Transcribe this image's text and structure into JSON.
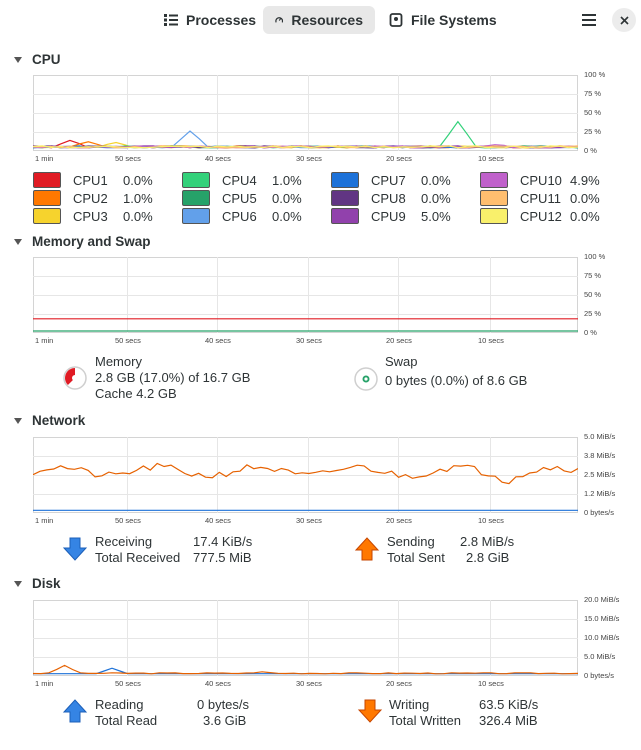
{
  "tabs": [
    {
      "label": "Processes",
      "active": false
    },
    {
      "label": "Resources",
      "active": true
    },
    {
      "label": "File Systems",
      "active": false
    }
  ],
  "time_labels": [
    "1 min",
    "50 secs",
    "40 secs",
    "30 secs",
    "20 secs",
    "10 secs"
  ],
  "cpu": {
    "title": "CPU",
    "y_labels": [
      "100 %",
      "75 %",
      "50 %",
      "25 %",
      "0 %"
    ],
    "cores": [
      {
        "name": "CPU1",
        "value": "0.0%",
        "color": "#e01b24"
      },
      {
        "name": "CPU2",
        "value": "1.0%",
        "color": "#ff7800"
      },
      {
        "name": "CPU3",
        "value": "0.0%",
        "color": "#f6d32d"
      },
      {
        "name": "CPU4",
        "value": "1.0%",
        "color": "#33d17a"
      },
      {
        "name": "CPU5",
        "value": "0.0%",
        "color": "#26a269"
      },
      {
        "name": "CPU6",
        "value": "0.0%",
        "color": "#62a0ea"
      },
      {
        "name": "CPU7",
        "value": "0.0%",
        "color": "#1c71d8"
      },
      {
        "name": "CPU8",
        "value": "0.0%",
        "color": "#613583"
      },
      {
        "name": "CPU9",
        "value": "5.0%",
        "color": "#9141ac"
      },
      {
        "name": "CPU10",
        "value": "4.9%",
        "color": "#c061cb"
      },
      {
        "name": "CPU11",
        "value": "0.0%",
        "color": "#ffbe6f"
      },
      {
        "name": "CPU12",
        "value": "0.0%",
        "color": "#f9f06b"
      }
    ]
  },
  "memory": {
    "title": "Memory and Swap",
    "y_labels": [
      "100 %",
      "75 %",
      "50 %",
      "25 %",
      "0 %"
    ],
    "memory_label": "Memory",
    "memory_value": "2.8 GB (17.0%) of 16.7 GB",
    "cache_value": "Cache 4.2 GB",
    "swap_label": "Swap",
    "swap_value": "0 bytes (0.0%) of 8.6 GB",
    "memory_percent": 17.0,
    "swap_percent": 0.0,
    "memory_color": "#e01b24",
    "swap_color": "#26a269"
  },
  "network": {
    "title": "Network",
    "y_labels": [
      "5.0 MiB/s",
      "3.8 MiB/s",
      "2.5 MiB/s",
      "1.2 MiB/s",
      "0 bytes/s"
    ],
    "receiving_label": "Receiving",
    "receiving_value": "17.4 KiB/s",
    "total_received_label": "Total Received",
    "total_received_value": "777.5 MiB",
    "sending_label": "Sending",
    "sending_value": "2.8 MiB/s",
    "total_sent_label": "Total Sent",
    "total_sent_value": "2.8 GiB",
    "receive_color": "#1c71d8",
    "send_color": "#e66100"
  },
  "disk": {
    "title": "Disk",
    "y_labels": [
      "20.0 MiB/s",
      "15.0 MiB/s",
      "10.0 MiB/s",
      "5.0 MiB/s",
      "0 bytes/s"
    ],
    "reading_label": "Reading",
    "reading_value": "0 bytes/s",
    "total_read_label": "Total Read",
    "total_read_value": "3.6 GiB",
    "writing_label": "Writing",
    "writing_value": "63.5 KiB/s",
    "total_written_label": "Total Written",
    "total_written_value": "326.4 MiB",
    "read_color": "#1c71d8",
    "write_color": "#e66100"
  }
}
